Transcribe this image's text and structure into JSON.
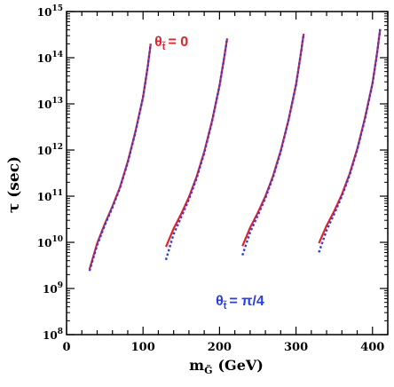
{
  "chart_data": {
    "type": "line",
    "xlabel": "m",
    "xlabel_sub": "G̃",
    "xlabel_unit": "(GeV)",
    "ylabel": "τ (sec)",
    "xlim": [
      0,
      420
    ],
    "ylim_log10": [
      8,
      15
    ],
    "yscale": "log",
    "x_ticks": [
      {
        "value": 0,
        "label": "0"
      },
      {
        "value": 100,
        "label": "100"
      },
      {
        "value": 200,
        "label": "200"
      },
      {
        "value": 300,
        "label": "300"
      },
      {
        "value": 400,
        "label": "400"
      }
    ],
    "y_ticks": [
      {
        "exp": 8,
        "base": "10",
        "power": "8"
      },
      {
        "exp": 9,
        "base": "10",
        "power": "9"
      },
      {
        "exp": 10,
        "base": "10",
        "power": "10"
      },
      {
        "exp": 11,
        "base": "10",
        "power": "11"
      },
      {
        "exp": 12,
        "base": "10",
        "power": "12"
      },
      {
        "exp": 13,
        "base": "10",
        "power": "13"
      },
      {
        "exp": 14,
        "base": "10",
        "power": "14"
      },
      {
        "exp": 15,
        "base": "10",
        "power": "15"
      }
    ],
    "grid": false,
    "series": [
      {
        "name": "θt̃ = 0",
        "color": "#e8202a",
        "dash": "solid",
        "curves": [
          [
            [
              30,
              9.42
            ],
            [
              40,
              9.98
            ],
            [
              50,
              10.4
            ],
            [
              60,
              10.78
            ],
            [
              70,
              11.2
            ],
            [
              80,
              11.75
            ],
            [
              90,
              12.4
            ],
            [
              100,
              13.15
            ],
            [
              106,
              13.8
            ],
            [
              110,
              14.3
            ]
          ],
          [
            [
              130,
              9.9
            ],
            [
              140,
              10.3
            ],
            [
              150,
              10.62
            ],
            [
              160,
              10.98
            ],
            [
              170,
              11.42
            ],
            [
              180,
              11.96
            ],
            [
              190,
              12.62
            ],
            [
              200,
              13.4
            ],
            [
              206,
              14.0
            ],
            [
              210,
              14.42
            ]
          ],
          [
            [
              230,
              9.92
            ],
            [
              240,
              10.32
            ],
            [
              250,
              10.64
            ],
            [
              260,
              11.0
            ],
            [
              270,
              11.44
            ],
            [
              280,
              11.98
            ],
            [
              290,
              12.64
            ],
            [
              300,
              13.42
            ],
            [
              306,
              14.05
            ],
            [
              310,
              14.52
            ]
          ],
          [
            [
              330,
              9.98
            ],
            [
              340,
              10.36
            ],
            [
              350,
              10.68
            ],
            [
              360,
              11.04
            ],
            [
              370,
              11.48
            ],
            [
              380,
              12.02
            ],
            [
              390,
              12.68
            ],
            [
              400,
              13.45
            ],
            [
              406,
              14.1
            ],
            [
              410,
              14.62
            ]
          ]
        ]
      },
      {
        "name": "θt̃ = π/4",
        "color": "#2a3ee8",
        "dash": "dotted",
        "curves": [
          [
            [
              30,
              9.38
            ],
            [
              40,
              9.94
            ],
            [
              50,
              10.37
            ],
            [
              60,
              10.75
            ],
            [
              70,
              11.18
            ],
            [
              80,
              11.73
            ],
            [
              90,
              12.38
            ],
            [
              100,
              13.14
            ],
            [
              106,
              13.79
            ],
            [
              110,
              14.3
            ]
          ],
          [
            [
              130,
              9.62
            ],
            [
              140,
              10.18
            ],
            [
              150,
              10.55
            ],
            [
              160,
              10.93
            ],
            [
              170,
              11.38
            ],
            [
              180,
              11.93
            ],
            [
              190,
              12.6
            ],
            [
              200,
              13.39
            ],
            [
              206,
              13.99
            ],
            [
              210,
              14.42
            ]
          ],
          [
            [
              230,
              9.72
            ],
            [
              240,
              10.22
            ],
            [
              250,
              10.58
            ],
            [
              260,
              10.96
            ],
            [
              270,
              11.41
            ],
            [
              280,
              11.96
            ],
            [
              290,
              12.63
            ],
            [
              300,
              13.41
            ],
            [
              306,
              14.04
            ],
            [
              310,
              14.52
            ]
          ],
          [
            [
              330,
              9.78
            ],
            [
              340,
              10.26
            ],
            [
              350,
              10.62
            ],
            [
              360,
              11.0
            ],
            [
              370,
              11.45
            ],
            [
              380,
              12.0
            ],
            [
              390,
              12.66
            ],
            [
              400,
              13.44
            ],
            [
              406,
              14.09
            ],
            [
              410,
              14.62
            ]
          ]
        ]
      }
    ],
    "annotations": [
      {
        "series": 0,
        "theta": "θ",
        "sub": "t̃",
        "text": "= 0",
        "color": "#e8202a",
        "at_x": 115,
        "at_log10y": 14.25
      },
      {
        "series": 1,
        "theta": "θ",
        "sub": "t̃",
        "text": "= π/4",
        "color": "#2a3ee8",
        "at_x": 195,
        "at_log10y": 8.63
      }
    ]
  }
}
